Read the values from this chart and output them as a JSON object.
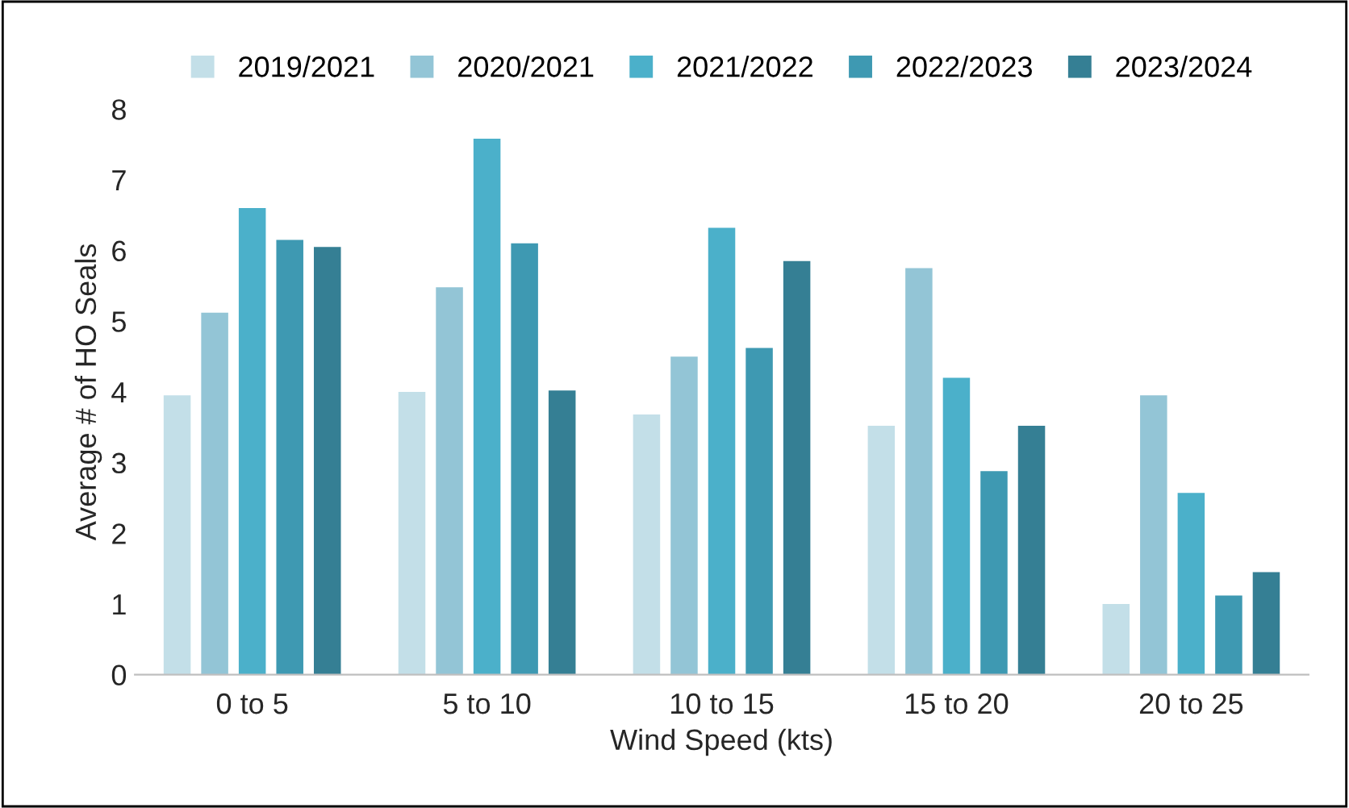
{
  "chart_data": {
    "type": "bar",
    "xlabel": "Wind Speed (kts)",
    "ylabel": "Average # of HO Seals",
    "categories": [
      "0 to 5",
      "5 to 10",
      "10 to 15",
      "15 to 20",
      "20 to 25"
    ],
    "series": [
      {
        "name": "2019/2021",
        "color": "#c3dfe8",
        "values": [
          3.95,
          4.0,
          3.68,
          3.52,
          1.0
        ]
      },
      {
        "name": "2020/2021",
        "color": "#93c5d6",
        "values": [
          5.12,
          5.48,
          4.5,
          5.75,
          3.95
        ]
      },
      {
        "name": "2021/2022",
        "color": "#4bb0ca",
        "values": [
          6.6,
          7.58,
          6.32,
          4.2,
          2.57
        ]
      },
      {
        "name": "2022/2023",
        "color": "#3e99b2",
        "values": [
          6.15,
          6.1,
          4.62,
          2.88,
          1.12
        ]
      },
      {
        "name": "2023/2024",
        "color": "#357f94",
        "values": [
          6.05,
          4.02,
          5.85,
          3.52,
          1.45
        ]
      }
    ],
    "ylim": [
      0,
      8
    ],
    "yticks": [
      0,
      1,
      2,
      3,
      4,
      5,
      6,
      7,
      8
    ],
    "grid": false,
    "legend": "top"
  }
}
